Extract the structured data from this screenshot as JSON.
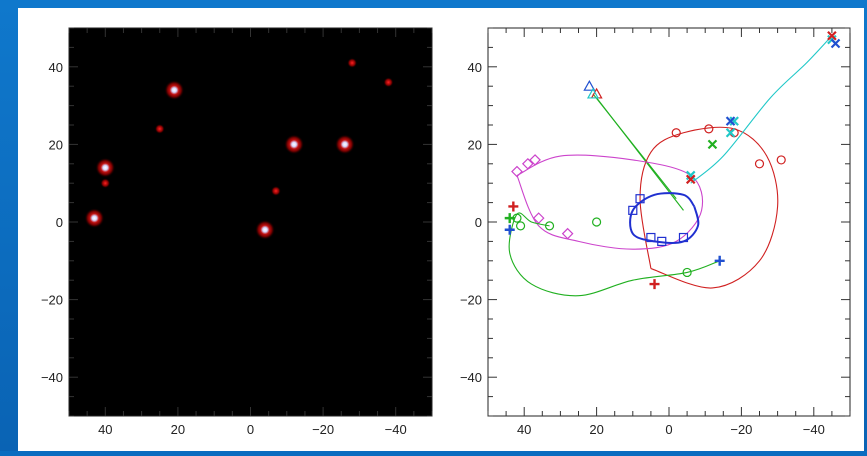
{
  "chart_data": [
    {
      "type": "heatmap",
      "xlim": [
        50,
        -50
      ],
      "ylim": [
        -50,
        50
      ],
      "xticks": [
        40,
        20,
        0,
        -20,
        -40
      ],
      "yticks": [
        -40,
        -20,
        0,
        20,
        40
      ],
      "xtick_labels": [
        "40",
        "20",
        "0",
        "−20",
        "−40"
      ],
      "ytick_labels": [
        "−40",
        "−20",
        "0",
        "20",
        "40"
      ],
      "background": "#000000",
      "bright_sources": [
        {
          "x": 43,
          "y": 1
        },
        {
          "x": 40,
          "y": 14
        },
        {
          "x": 21,
          "y": 34
        },
        {
          "x": -4,
          "y": -2
        },
        {
          "x": -12,
          "y": 20
        },
        {
          "x": -26,
          "y": 20
        }
      ],
      "faint_sources": [
        {
          "x": 40,
          "y": 10
        },
        {
          "x": 25,
          "y": 24
        },
        {
          "x": -7,
          "y": 8
        },
        {
          "x": -28,
          "y": 41
        },
        {
          "x": -38,
          "y": 36
        }
      ]
    },
    {
      "type": "line",
      "xlim": [
        50,
        -50
      ],
      "ylim": [
        -50,
        50
      ],
      "xticks": [
        40,
        20,
        0,
        -20,
        -40
      ],
      "yticks": [
        -40,
        -20,
        0,
        20,
        40
      ],
      "xtick_labels": [
        "40",
        "20",
        "0",
        "−20",
        "−40"
      ],
      "ytick_labels": [
        "−40",
        "−20",
        "0",
        "20",
        "40"
      ],
      "series": [
        {
          "color": "#d02020",
          "shape": "ellipse",
          "cx": -7,
          "cy": 3,
          "rx": 17,
          "ry": 20,
          "marker": "circle",
          "path": [
            [
              5,
              -12
            ],
            [
              -12,
              -17
            ],
            [
              -25,
              -10
            ],
            [
              -30,
              4
            ],
            [
              -27,
              17
            ],
            [
              -18,
              24
            ],
            [
              -4,
              23
            ],
            [
              5,
              18
            ],
            [
              8,
              6
            ],
            [
              5,
              -12
            ]
          ],
          "markers": [
            [
              -2,
              23
            ],
            [
              -11,
              24
            ],
            [
              -18,
              23
            ],
            [
              -25,
              15
            ],
            [
              -31,
              16
            ]
          ]
        },
        {
          "color": "#cc44cc",
          "shape": "ellipse",
          "marker": "diamond",
          "path": [
            [
              42,
              12
            ],
            [
              30,
              17
            ],
            [
              10,
              16
            ],
            [
              -6,
              12
            ],
            [
              -9,
              3
            ],
            [
              -2,
              -5
            ],
            [
              10,
              -7
            ],
            [
              25,
              -5
            ],
            [
              36,
              -1
            ],
            [
              42,
              12
            ]
          ],
          "markers": [
            [
              42,
              13
            ],
            [
              39,
              15
            ],
            [
              37,
              16
            ],
            [
              28,
              -3
            ],
            [
              36,
              1
            ]
          ]
        },
        {
          "color": "#20b020",
          "shape": "curve",
          "marker": "circle",
          "path": [
            [
              -14,
              -10
            ],
            [
              -5,
              -13
            ],
            [
              10,
              -15
            ],
            [
              25,
              -19
            ],
            [
              38,
              -16
            ],
            [
              44,
              -8
            ],
            [
              42,
              2
            ],
            [
              38,
              0
            ],
            [
              33,
              -1
            ]
          ],
          "markers": [
            [
              42,
              1
            ],
            [
              41,
              -1
            ],
            [
              33,
              -1
            ],
            [
              20,
              0
            ],
            [
              -5,
              -13
            ]
          ]
        },
        {
          "color": "#2030d0",
          "shape": "ellipse",
          "marker": "square",
          "path": [
            [
              -7,
              4
            ],
            [
              -4,
              7
            ],
            [
              4,
              7
            ],
            [
              10,
              3
            ],
            [
              10,
              -3
            ],
            [
              4,
              -5
            ],
            [
              -4,
              -5
            ],
            [
              -8,
              -1
            ],
            [
              -7,
              4
            ]
          ],
          "markers": [
            [
              10,
              3
            ],
            [
              8,
              6
            ],
            [
              5,
              -4
            ],
            [
              2,
              -5
            ],
            [
              -4,
              -4
            ]
          ]
        },
        {
          "color": "#20c8c8",
          "shape": "curve",
          "marker": "x",
          "path": [
            [
              -6,
              10
            ],
            [
              -15,
              17
            ],
            [
              -28,
              32
            ],
            [
              -38,
              41
            ],
            [
              -45,
              48
            ]
          ],
          "markers": [
            [
              -6,
              12
            ],
            [
              -17,
              23
            ],
            [
              -18,
              26
            ],
            [
              -45,
              47
            ]
          ]
        }
      ],
      "endpoints": [
        {
          "color": "#2050d0",
          "shape": "plus",
          "x": -14,
          "y": -10
        },
        {
          "color": "#d02020",
          "shape": "plus",
          "x": 4,
          "y": -16
        },
        {
          "color": "#d02020",
          "shape": "plus",
          "x": 43,
          "y": 4
        },
        {
          "color": "#20b020",
          "shape": "plus",
          "x": 44,
          "y": 1
        },
        {
          "color": "#2050d0",
          "shape": "plus",
          "x": 44,
          "y": -2
        },
        {
          "color": "#d02020",
          "shape": "x",
          "x": -6,
          "y": 11
        },
        {
          "color": "#2050d0",
          "shape": "x",
          "x": -17,
          "y": 26
        },
        {
          "color": "#20b020",
          "shape": "x",
          "x": -12,
          "y": 20
        },
        {
          "color": "#d02020",
          "shape": "x",
          "x": -45,
          "y": 48
        },
        {
          "color": "#2050d0",
          "shape": "x",
          "x": -46,
          "y": 46
        },
        {
          "color": "#2050d0",
          "shape": "triangle",
          "x": 22,
          "y": 35
        },
        {
          "color": "#d02020",
          "shape": "triangle",
          "x": 20,
          "y": 33
        },
        {
          "color": "#20c8c8",
          "shape": "triangle",
          "x": 21,
          "y": 33
        }
      ],
      "straight_lines": [
        {
          "color": "#20b020",
          "from": [
            21,
            33
          ],
          "to": [
            -2,
            6
          ]
        },
        {
          "color": "#20b020",
          "from": [
            20,
            32
          ],
          "to": [
            -4,
            3
          ]
        }
      ]
    }
  ]
}
